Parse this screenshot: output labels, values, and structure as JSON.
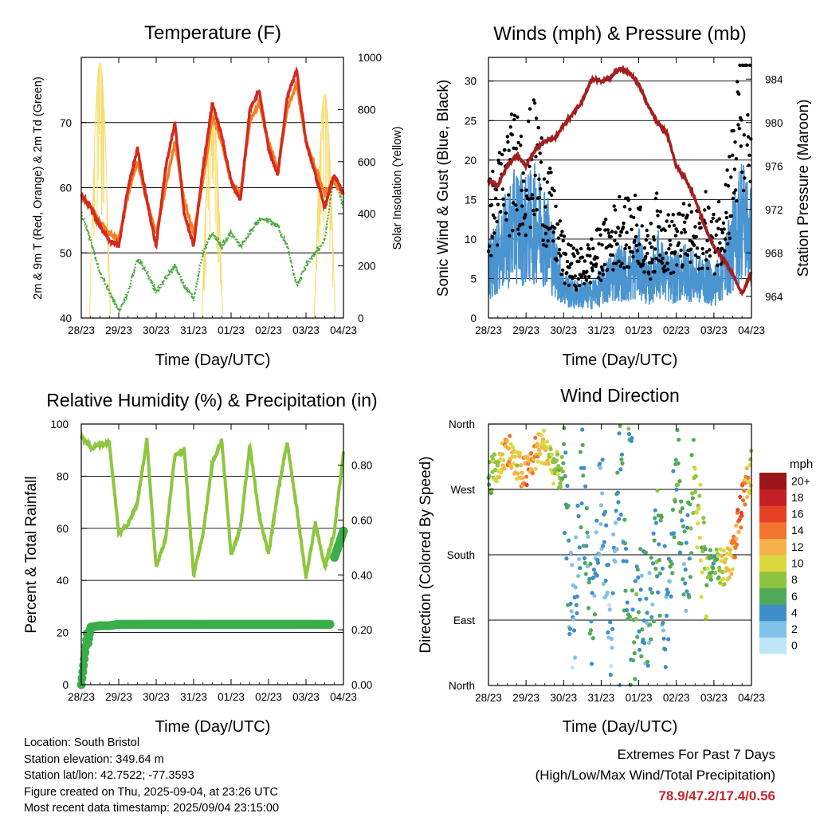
{
  "x_ticks": [
    "28/23",
    "29/23",
    "30/23",
    "31/23",
    "01/23",
    "02/23",
    "03/23",
    "04/23"
  ],
  "panels": {
    "temperature": {
      "title": "Temperature (F)",
      "ylabel": "2m & 9m T (Red, Orange) & 2m Td (Green)",
      "y2label": "Solar Insolation (Yellow)",
      "xlabel": "Time (Day/UTC)",
      "yticks": [
        "40",
        "50",
        "60",
        "70"
      ],
      "y2ticks": [
        "0",
        "200",
        "400",
        "600",
        "800",
        "1000"
      ]
    },
    "wind": {
      "title": "Winds (mph) & Pressure (mb)",
      "ylabel": "Sonic Wind & Gust (Blue, Black)",
      "y2label": "Station Pressure (Maroon)",
      "xlabel": "Time (Day/UTC)",
      "yticks": [
        "0",
        "5",
        "10",
        "15",
        "20",
        "25",
        "30"
      ],
      "y2ticks": [
        "964",
        "968",
        "972",
        "976",
        "980",
        "984"
      ]
    },
    "humidity": {
      "title": "Relative Humidity (%) & Precipitation (in)",
      "ylabel": "Percent & Total Rainfall",
      "xlabel": "Time (Day/UTC)",
      "yticks": [
        "0",
        "20",
        "40",
        "60",
        "80",
        "100"
      ],
      "y2ticks": [
        "0.00",
        "0.20",
        "0.40",
        "0.60",
        "0.80"
      ]
    },
    "direction": {
      "title": "Wind Direction",
      "ylabel": "Direction (Colored By Speed)",
      "xlabel": "Time (Day/UTC)",
      "yticks": [
        "North",
        "East",
        "South",
        "West",
        "North"
      ],
      "legend_title": "mph",
      "legend_labels": [
        "0",
        "2",
        "4",
        "6",
        "8",
        "10",
        "12",
        "14",
        "16",
        "18",
        "20+"
      ],
      "legend_colors": [
        "#bfe6f7",
        "#82c1e8",
        "#3e8fc8",
        "#52a95a",
        "#8cc43f",
        "#dbd93e",
        "#f8b14a",
        "#f1742f",
        "#e64124",
        "#c41f25",
        "#9a1619"
      ]
    }
  },
  "chart_data": [
    {
      "type": "line",
      "title": "Temperature (F)",
      "xlabel": "Time (Day/UTC)",
      "ylabel": "2m & 9m T (Red, Orange) & 2m Td (Green)",
      "y2label": "Solar Insolation (Yellow)",
      "x": [
        0,
        0.25,
        0.5,
        0.75,
        1,
        1.25,
        1.5,
        1.75,
        2,
        2.25,
        2.5,
        2.75,
        3,
        3.25,
        3.5,
        3.75,
        4,
        4.25,
        4.5,
        4.75,
        5,
        5.25,
        5.5,
        5.75,
        6,
        6.25,
        6.5,
        6.75,
        7
      ],
      "xlim": [
        0,
        7
      ],
      "ylim": [
        40,
        80
      ],
      "y2lim": [
        0,
        1000
      ],
      "series": [
        {
          "name": "2m T",
          "color": "#d42a20",
          "axis": "left",
          "values": [
            59,
            57,
            54,
            52,
            51,
            60,
            66,
            58,
            51,
            63,
            70,
            56,
            51,
            63,
            73,
            68,
            61,
            58,
            72,
            75,
            66,
            62,
            74,
            78,
            67,
            62,
            57,
            62,
            59
          ]
        },
        {
          "name": "9m T",
          "color": "#f47f22",
          "axis": "left",
          "values": [
            58.5,
            57,
            54.5,
            53,
            52,
            59,
            64,
            58,
            53,
            60,
            67,
            58,
            53,
            61,
            71,
            67,
            61,
            59,
            70,
            73,
            67,
            63,
            72,
            76,
            67,
            63,
            59,
            61,
            59
          ]
        },
        {
          "name": "2m Td",
          "color": "#4aab3e",
          "axis": "left",
          "values": [
            56,
            52,
            47,
            44,
            41,
            44,
            49,
            47,
            44,
            46,
            48,
            45,
            43,
            50,
            53,
            51,
            53,
            51,
            53,
            55,
            55,
            54,
            51,
            45,
            48,
            50,
            52,
            62,
            57
          ]
        },
        {
          "name": "Solar Insolation",
          "color": "#f7dd6e",
          "axis": "right",
          "values": [
            0,
            0,
            980,
            0,
            0,
            960,
            0,
            0,
            820,
            0,
            0,
            780,
            0,
            0,
            800,
            0,
            0,
            950,
            0,
            0,
            920,
            0,
            0,
            920,
            0,
            0,
            860,
            0,
            0
          ]
        }
      ]
    },
    {
      "type": "line",
      "title": "Winds (mph) & Pressure (mb)",
      "xlabel": "Time (Day/UTC)",
      "ylabel": "Sonic Wind & Gust (Blue, Black)",
      "y2label": "Station Pressure (Maroon)",
      "x": [
        0,
        0.25,
        0.5,
        0.75,
        1,
        1.25,
        1.5,
        1.75,
        2,
        2.25,
        2.5,
        2.75,
        3,
        3.25,
        3.5,
        3.75,
        4,
        4.25,
        4.5,
        4.75,
        5,
        5.25,
        5.5,
        5.75,
        6,
        6.25,
        6.5,
        6.75,
        7
      ],
      "xlim": [
        0,
        7
      ],
      "ylim": [
        0,
        33
      ],
      "y2lim": [
        962,
        986
      ],
      "series": [
        {
          "name": "Sonic Wind",
          "color": "#4a94d0",
          "axis": "left",
          "values": [
            6,
            8,
            10,
            12,
            11,
            12,
            11,
            7,
            4,
            3,
            3,
            3,
            4,
            5,
            6,
            5,
            7,
            4,
            7,
            5,
            5,
            6,
            5,
            5,
            4,
            6,
            9,
            13,
            10
          ]
        },
        {
          "name": "Gust",
          "color": "#000000",
          "axis": "left",
          "values": [
            12,
            14,
            17,
            18,
            17,
            19,
            15,
            11,
            7,
            6,
            6,
            7,
            8,
            9,
            11,
            10,
            11,
            7,
            11,
            9,
            9,
            10,
            9,
            11,
            9,
            12,
            17,
            25,
            22
          ]
        },
        {
          "name": "Station Pressure",
          "color": "#a31f1f",
          "axis": "right",
          "values": [
            974.6,
            974.2,
            976.0,
            977.0,
            976.0,
            977.5,
            978.3,
            978.5,
            979.8,
            980.8,
            982.0,
            984.0,
            983.8,
            984.2,
            985.0,
            984.6,
            983.5,
            981.5,
            980.0,
            979.0,
            976.0,
            974.8,
            973.0,
            970.5,
            968.5,
            967.5,
            966.0,
            964.2,
            966.2
          ]
        }
      ]
    },
    {
      "type": "line",
      "title": "Relative Humidity (%) & Precipitation (in)",
      "xlabel": "Time (Day/UTC)",
      "ylabel": "Percent & Total Rainfall",
      "x": [
        0,
        0.25,
        0.5,
        0.75,
        1,
        1.25,
        1.5,
        1.75,
        2,
        2.25,
        2.5,
        2.75,
        3,
        3.25,
        3.5,
        3.75,
        4,
        4.25,
        4.5,
        4.75,
        5,
        5.25,
        5.5,
        5.75,
        6,
        6.25,
        6.5,
        6.75,
        7
      ],
      "xlim": [
        0,
        7
      ],
      "ylim": [
        0,
        100
      ],
      "y2lim": [
        0,
        0.95
      ],
      "series": [
        {
          "name": "Relative Humidity",
          "color": "#8dc63f",
          "axis": "left",
          "values": [
            95,
            91,
            92,
            93,
            58,
            62,
            70,
            94,
            45,
            56,
            88,
            90,
            42,
            58,
            85,
            94,
            50,
            60,
            92,
            65,
            50,
            74,
            93,
            68,
            41,
            62,
            45,
            58,
            89
          ]
        },
        {
          "name": "Total Precipitation",
          "color": "#3aae49",
          "axis": "right",
          "values": [
            0,
            0.21,
            0.215,
            0.215,
            0.22,
            0.22,
            0.22,
            0.22,
            0.22,
            0.22,
            0.22,
            0.22,
            0.22,
            0.22,
            0.22,
            0.22,
            0.22,
            0.22,
            0.22,
            0.22,
            0.22,
            0.22,
            0.22,
            0.22,
            0.22,
            0.22,
            0.22,
            0.46,
            0.56
          ]
        }
      ]
    },
    {
      "type": "scatter",
      "title": "Wind Direction",
      "xlabel": "Time (Day/UTC)",
      "ylabel": "Direction (Colored By Speed)",
      "yticks": [
        "North",
        "East",
        "South",
        "West",
        "North"
      ],
      "x": [
        0,
        0.25,
        0.5,
        0.75,
        1,
        1.25,
        1.5,
        1.75,
        2,
        2.25,
        2.5,
        2.75,
        3,
        3.25,
        3.5,
        3.75,
        4,
        4.25,
        4.5,
        4.75,
        5,
        5.25,
        5.5,
        5.75,
        6,
        6.25,
        6.5,
        6.75,
        7
      ],
      "xlim": [
        0,
        7
      ],
      "ylim": [
        0,
        360
      ],
      "series": [
        {
          "name": "Direction",
          "values": [
            285,
            300,
            330,
            300,
            290,
            320,
            330,
            300,
            290,
            60,
            300,
            80,
            270,
            60,
            300,
            20,
            120,
            100,
            200,
            90,
            330,
            130,
            300,
            150,
            170,
            160,
            180,
            250,
            300
          ]
        },
        {
          "name": "Speed",
          "values": [
            8,
            10,
            13,
            10,
            14,
            12,
            11,
            8,
            6,
            2,
            5,
            4,
            3,
            2,
            4,
            6,
            5,
            4,
            6,
            3,
            6,
            4,
            8,
            9,
            6,
            10,
            12,
            15,
            10
          ]
        }
      ]
    }
  ],
  "footer": {
    "location": "Location: South Bristol",
    "elevation": "Station elevation: 349.64 m",
    "latlon": "Station lat/lon: 42.7522; -77.3593",
    "created": "Figure created on Thu, 2025-09-04, at 23:26 UTC",
    "recent": "Most recent data timestamp: 2025/09/04 23:15:00",
    "extremes_title": "Extremes For Past 7 Days",
    "extremes_sub": "(High/Low/Max Wind/Total Precipitation)",
    "extremes_values": "78.9/47.2/17.4/0.56"
  }
}
